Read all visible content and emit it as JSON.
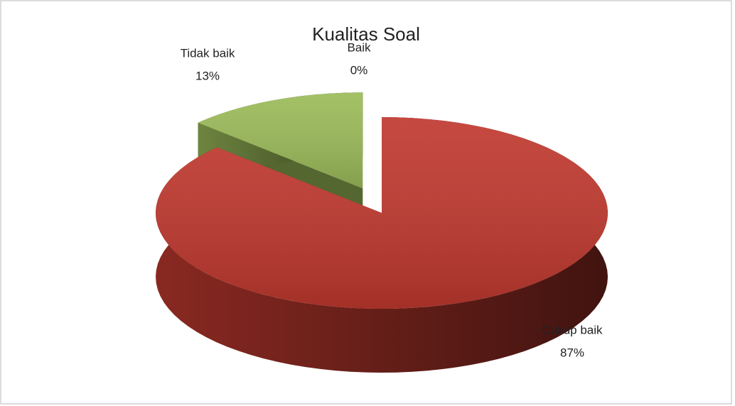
{
  "chart_data": {
    "type": "pie3d",
    "title": "Kualitas Soal",
    "categories": [
      "Cukup baik",
      "Tidak baik",
      "Baik"
    ],
    "values": [
      87,
      13,
      0
    ],
    "value_labels": [
      "87%",
      "13%",
      "0%"
    ],
    "colors": [
      "#c0392f",
      "#9bbb59",
      "#4f81bd"
    ]
  }
}
